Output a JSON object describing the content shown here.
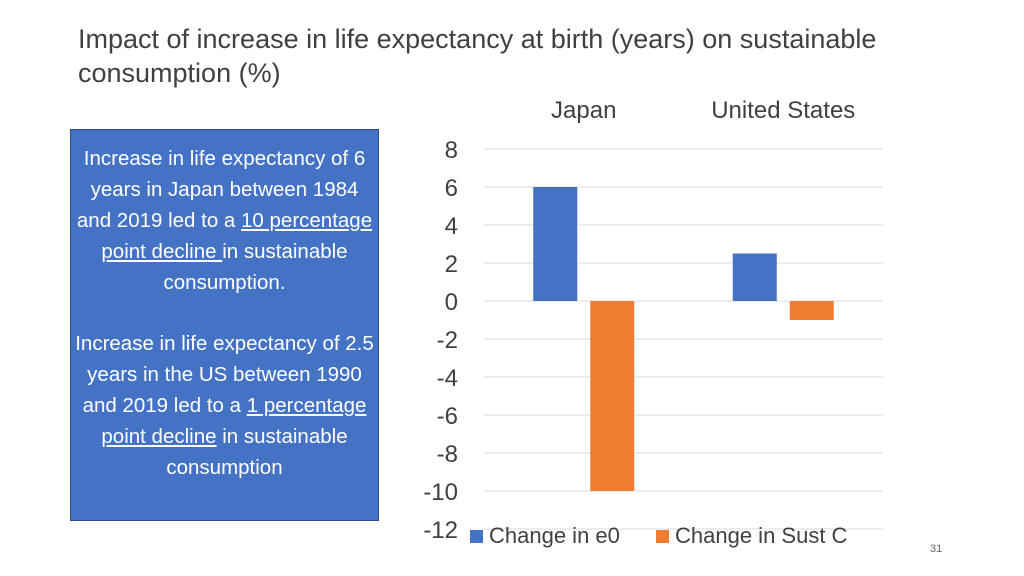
{
  "slide": {
    "title_line1": "Impact of increase in life expectancy at birth (years) on sustainable",
    "title_line2": "consumption (%)",
    "page_number": "31"
  },
  "info_box": {
    "para1": {
      "before": "Increase in life expectancy of 6 years in Japan between 1984 and 2019 led to a ",
      "underlined": "10 percentage point decline ",
      "after": "in sustainable consumption."
    },
    "para2": {
      "before": "Increase in life expectancy of 2.5 years in the US between 1990 and 2019 led to a ",
      "underlined": "1 percentage point decline",
      "after": " in sustainable consumption"
    }
  },
  "chart_data": {
    "type": "bar",
    "categories": [
      "Japan",
      "United States"
    ],
    "series": [
      {
        "name": "Change in e0",
        "values": [
          6,
          2.5
        ],
        "color": "#4472c4"
      },
      {
        "name": "Change in Sust C",
        "values": [
          -10,
          -1
        ],
        "color": "#ed7d31"
      }
    ],
    "ylim": [
      -12,
      8
    ],
    "yticks": [
      8,
      6,
      4,
      2,
      0,
      -2,
      -4,
      -6,
      -8,
      -10,
      -12
    ],
    "category_label_position": "top",
    "legend_position": "bottom",
    "grid": true
  }
}
